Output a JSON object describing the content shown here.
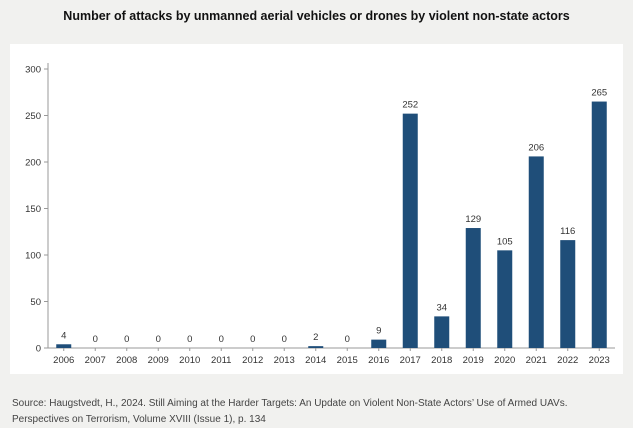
{
  "title": "Number of attacks by unmanned aerial vehicles or drones by violent non-state actors",
  "source": "Source: Haugstvedt, H., 2024. Still Aiming at the Harder Targets: An Update on Violent Non-State Actors’ Use of Armed UAVs. Perspectives on Terrorism, Volume XVIII (Issue 1), p. 134",
  "chart_data": {
    "type": "bar",
    "categories": [
      "2006",
      "2007",
      "2008",
      "2009",
      "2010",
      "2011",
      "2012",
      "2013",
      "2014",
      "2015",
      "2016",
      "2017",
      "2018",
      "2019",
      "2020",
      "2021",
      "2022",
      "2023"
    ],
    "values": [
      4,
      0,
      0,
      0,
      0,
      0,
      0,
      0,
      2,
      0,
      9,
      252,
      34,
      129,
      105,
      206,
      116,
      265
    ],
    "data_labels": [
      "4",
      "0",
      "0",
      "0",
      "0",
      "0",
      "0",
      "0",
      "2",
      "0",
      "9",
      "252",
      "34",
      "129",
      "105",
      "206",
      "116",
      "265"
    ],
    "yticks": [
      0,
      50,
      100,
      150,
      200,
      250,
      300
    ],
    "ylim": [
      0,
      300
    ],
    "bar_color": "#1f4e79",
    "grid": false,
    "legend": "none"
  }
}
